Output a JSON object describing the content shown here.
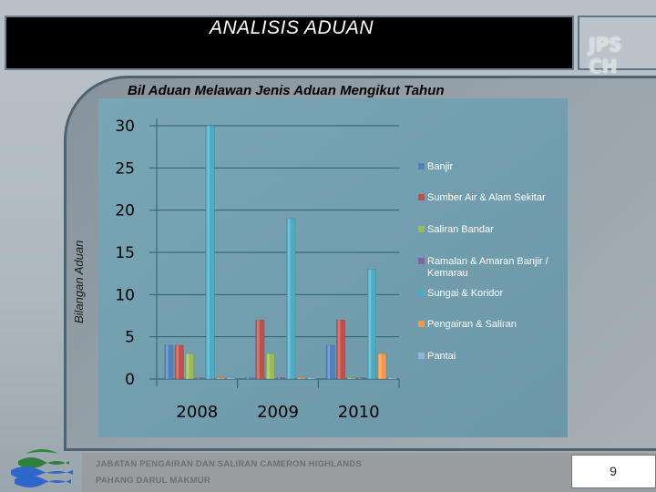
{
  "slide": {
    "title": "ANALISIS ADUAN",
    "logo_text": "JPS CH",
    "footer_line1": "JABATAN PENGAIRAN DAN SALIRAN CAMERON HIGHLANDS",
    "footer_line2": "PAHANG DARUL MAKMUR",
    "page_number": "9"
  },
  "chart_data": {
    "type": "bar",
    "title": "Bil Aduan Melawan Jenis Aduan Mengikut Tahun",
    "xlabel": "",
    "ylabel": "Bilangan Aduan",
    "categories": [
      "2008",
      "2009",
      "2010"
    ],
    "ylim": [
      0,
      30
    ],
    "yticks": [
      0,
      5,
      10,
      15,
      20,
      25,
      30
    ],
    "grid": true,
    "legend_position": "right",
    "series": [
      {
        "name": "Banjir",
        "color": "#4f81bd",
        "values": [
          4,
          0,
          4
        ]
      },
      {
        "name": "Sumber Air & Alam Sekitar",
        "color": "#c0504d",
        "values": [
          4,
          7,
          7
        ]
      },
      {
        "name": "Saliran Bandar",
        "color": "#9bbb59",
        "values": [
          3,
          3,
          0
        ]
      },
      {
        "name": "Ramalan & Amaran Banjir / Kemarau",
        "color": "#8064a2",
        "values": [
          0,
          0,
          0
        ]
      },
      {
        "name": "Sungai & Koridor",
        "color": "#4bacc6",
        "values": [
          30,
          19,
          13
        ]
      },
      {
        "name": "Pengairan & Saliran",
        "color": "#f79646",
        "values": [
          0,
          0,
          3
        ]
      },
      {
        "name": "Pantai",
        "color": "#95b3d7",
        "values": [
          0,
          0,
          0
        ]
      }
    ]
  }
}
